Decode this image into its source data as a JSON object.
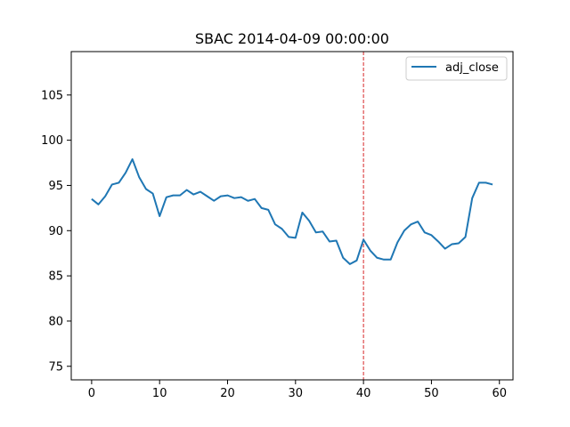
{
  "chart_data": {
    "type": "line",
    "title": "SBAC 2014-04-09 00:00:00",
    "xlabel": "",
    "ylabel": "",
    "xlim": [
      -3,
      62
    ],
    "ylim": [
      73.5,
      109.8
    ],
    "x_ticks": [
      0,
      10,
      20,
      30,
      40,
      50,
      60
    ],
    "y_ticks": [
      75,
      80,
      85,
      90,
      95,
      100,
      105
    ],
    "grid": false,
    "legend_position": "upper right",
    "marker_line": {
      "x": 40,
      "color": "#d62728",
      "style": "dashed"
    },
    "series": [
      {
        "name": "adj_close",
        "color": "#1f77b4",
        "x": [
          0,
          1,
          2,
          3,
          4,
          5,
          6,
          7,
          8,
          9,
          10,
          11,
          12,
          13,
          14,
          15,
          16,
          17,
          18,
          19,
          20,
          21,
          22,
          23,
          24,
          25,
          26,
          27,
          28,
          29,
          30,
          31,
          32,
          33,
          34,
          35,
          36,
          37,
          38,
          39,
          40,
          41,
          42,
          43,
          44,
          45,
          46,
          47,
          48,
          49,
          50,
          51,
          52,
          53,
          54,
          55,
          56,
          57,
          58,
          59
        ],
        "values": [
          93.5,
          92.9,
          93.8,
          95.1,
          95.3,
          96.4,
          97.9,
          95.9,
          94.6,
          94.1,
          91.6,
          93.7,
          93.9,
          93.9,
          94.5,
          94.0,
          94.3,
          93.8,
          93.3,
          93.8,
          93.9,
          93.6,
          93.7,
          93.3,
          93.5,
          92.5,
          92.3,
          90.7,
          90.2,
          89.3,
          89.2,
          92.0,
          91.1,
          89.8,
          89.9,
          88.8,
          88.9,
          87.0,
          86.3,
          86.7,
          89.0,
          87.8,
          87.0,
          86.8,
          86.8,
          88.7,
          90.0,
          90.7,
          91.0,
          89.8,
          89.5,
          88.8,
          88.0,
          88.5,
          88.6,
          89.3,
          93.6,
          95.3,
          95.3,
          95.1
        ]
      }
    ]
  }
}
